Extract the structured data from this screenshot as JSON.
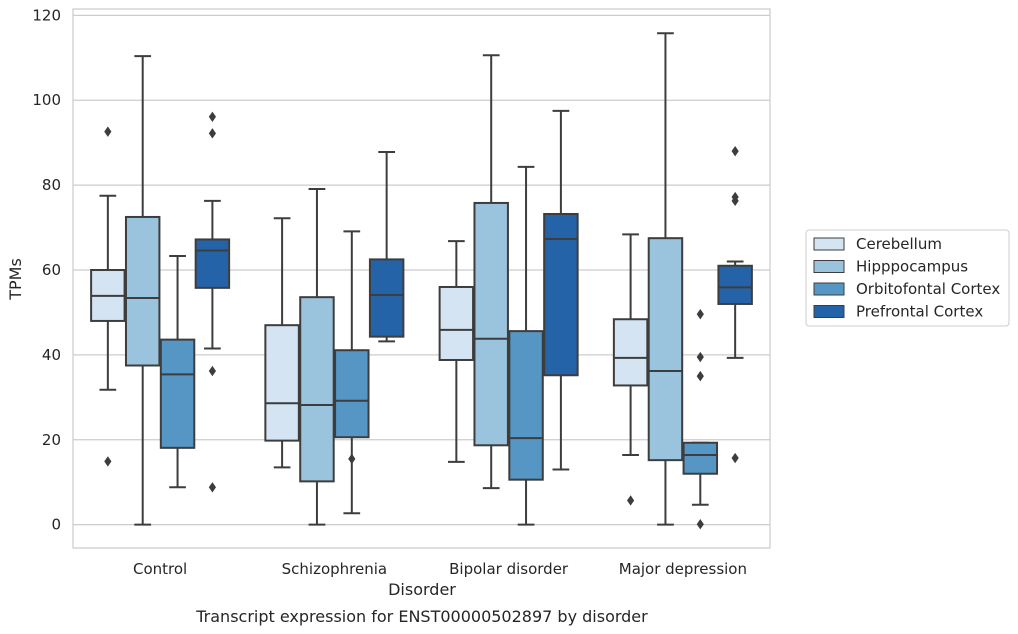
{
  "chart_data": {
    "type": "box",
    "caption": "Transcript expression for ENST00000502897 by disorder",
    "xlabel": "Disorder",
    "ylabel": "TPMs",
    "ylim": [
      -5.5,
      121.5
    ],
    "yticks": [
      0,
      20,
      40,
      60,
      80,
      100,
      120
    ],
    "grid": "horizontal",
    "legend_position": "right",
    "categories": [
      "Control",
      "Schizophrenia",
      "Bipolar disorder",
      "Major depression"
    ],
    "series": [
      {
        "name": "Cerebellum",
        "color": "#d4e4f3",
        "boxes": [
          {
            "whisker_low": 31.8,
            "q1": 48.0,
            "median": 53.9,
            "q3": 60.0,
            "whisker_high": 77.5,
            "outliers": [
              92.6,
              14.9
            ]
          },
          {
            "whisker_low": 13.5,
            "q1": 19.8,
            "median": 28.6,
            "q3": 47.0,
            "whisker_high": 72.2,
            "outliers": []
          },
          {
            "whisker_low": 14.8,
            "q1": 38.8,
            "median": 45.9,
            "q3": 56.0,
            "whisker_high": 66.8,
            "outliers": []
          },
          {
            "whisker_low": 16.4,
            "q1": 32.8,
            "median": 39.3,
            "q3": 48.4,
            "whisker_high": 68.4,
            "outliers": [
              5.7
            ]
          }
        ]
      },
      {
        "name": "Hipppocampus",
        "color": "#9ac3dd",
        "boxes": [
          {
            "whisker_low": 0.0,
            "q1": 37.5,
            "median": 53.4,
            "q3": 72.5,
            "whisker_high": 110.4,
            "outliers": []
          },
          {
            "whisker_low": 0.0,
            "q1": 10.2,
            "median": 28.2,
            "q3": 53.6,
            "whisker_high": 79.1,
            "outliers": []
          },
          {
            "whisker_low": 8.6,
            "q1": 18.7,
            "median": 43.8,
            "q3": 75.8,
            "whisker_high": 110.6,
            "outliers": []
          },
          {
            "whisker_low": 0.0,
            "q1": 15.2,
            "median": 36.2,
            "q3": 67.5,
            "whisker_high": 115.8,
            "outliers": []
          }
        ]
      },
      {
        "name": "Orbitofontal Cortex",
        "color": "#5596c5",
        "boxes": [
          {
            "whisker_low": 8.8,
            "q1": 18.1,
            "median": 35.4,
            "q3": 43.6,
            "whisker_high": 63.3,
            "outliers": []
          },
          {
            "whisker_low": 2.7,
            "q1": 20.6,
            "median": 29.2,
            "q3": 41.1,
            "whisker_high": 69.1,
            "outliers": [
              15.5
            ]
          },
          {
            "whisker_low": 0.0,
            "q1": 10.6,
            "median": 20.4,
            "q3": 45.6,
            "whisker_high": 84.3,
            "outliers": []
          },
          {
            "whisker_low": 4.7,
            "q1": 12.0,
            "median": 16.4,
            "q3": 19.3,
            "whisker_high": 19.3,
            "outliers": [
              49.6,
              39.5,
              35.0,
              0.1
            ]
          }
        ]
      },
      {
        "name": "Prefrontal Cortex",
        "color": "#2563a9",
        "boxes": [
          {
            "whisker_low": 41.5,
            "q1": 55.8,
            "median": 64.6,
            "q3": 67.2,
            "whisker_high": 76.3,
            "outliers": [
              96.1,
              92.2,
              36.2,
              8.8
            ]
          },
          {
            "whisker_low": 43.2,
            "q1": 44.3,
            "median": 54.1,
            "q3": 62.5,
            "whisker_high": 87.8,
            "outliers": []
          },
          {
            "whisker_low": 13.0,
            "q1": 35.2,
            "median": 67.3,
            "q3": 73.2,
            "whisker_high": 97.5,
            "outliers": []
          },
          {
            "whisker_low": 39.3,
            "q1": 52.0,
            "median": 55.9,
            "q3": 61.0,
            "whisker_high": 62.0,
            "outliers": [
              88.0,
              77.2,
              76.3,
              15.7
            ]
          }
        ]
      }
    ]
  }
}
